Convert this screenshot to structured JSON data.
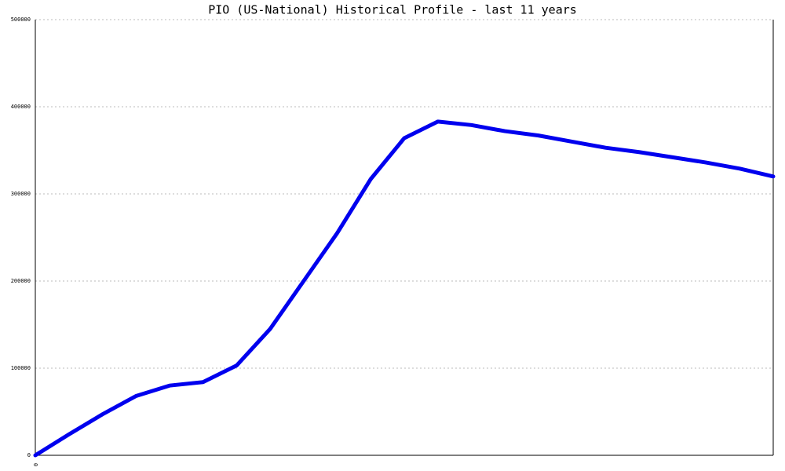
{
  "chart_data": {
    "type": "line",
    "title": "PIO (US-National) Historical Profile - last 11 years",
    "categories": [
      "0",
      null,
      null,
      null,
      null,
      null,
      null,
      null,
      null,
      null,
      null,
      null,
      null,
      null,
      null,
      null,
      null,
      null,
      null,
      null,
      null,
      null,
      null
    ],
    "series": [
      {
        "color": "#0000ee",
        "values": [
          0,
          24000,
          47000,
          68000,
          80000,
          84000,
          103000,
          145000,
          200000,
          255000,
          317000,
          364000,
          383000,
          379000,
          372000,
          367000,
          360000,
          353000,
          348000,
          342000,
          336000,
          329000,
          320000
        ]
      }
    ],
    "ylim": [
      0,
      500000
    ],
    "yticks": [
      0,
      100000,
      200000,
      300000,
      400000,
      500000
    ],
    "grid": true
  }
}
